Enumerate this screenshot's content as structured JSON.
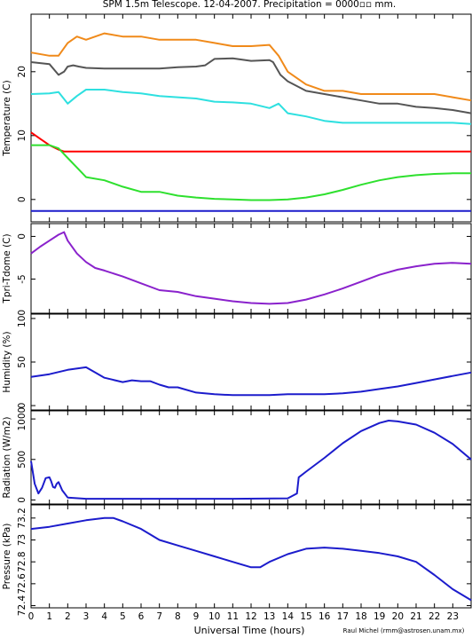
{
  "title": "SPM 1.5m Telescope. 12-04-2007. Precipitation = 0000▫▫ mm.",
  "credit": "Raul Michel (rmm@astrosen.unam.mx)",
  "xlabel": "Universal Time (hours)",
  "xticks": [
    "0",
    "1",
    "2",
    "3",
    "4",
    "5",
    "6",
    "7",
    "8",
    "9",
    "10",
    "11",
    "12",
    "13",
    "14",
    "15",
    "16",
    "17",
    "18",
    "19",
    "20",
    "21",
    "22",
    "23"
  ],
  "xlim": [
    0,
    24
  ],
  "chart_data": [
    {
      "type": "line",
      "ylabel": "Temperature (C)",
      "xlim": [
        0,
        24
      ],
      "ylim": [
        -3.5,
        29
      ],
      "yticks": [
        0,
        10,
        20
      ],
      "series": [
        {
          "color": "#f08a1a",
          "x": [
            0,
            1,
            1.5,
            2,
            2.5,
            3,
            4,
            5,
            6,
            7,
            8,
            9,
            10,
            11,
            12,
            13,
            13.5,
            14,
            15,
            16,
            17,
            18,
            19,
            20,
            21,
            22,
            23,
            24
          ],
          "y": [
            23,
            22.5,
            22.5,
            24.5,
            25.5,
            25,
            26,
            25.5,
            25.5,
            25,
            25,
            25,
            24.5,
            24,
            24,
            24.2,
            22.5,
            20,
            18,
            17,
            17,
            16.5,
            16.5,
            16.5,
            16.5,
            16.5,
            16,
            15.5
          ]
        },
        {
          "color": "#555555",
          "x": [
            0,
            1,
            1.5,
            1.8,
            2,
            2.3,
            2.6,
            3,
            4,
            5,
            6,
            7,
            8,
            9,
            9.5,
            10,
            11,
            12,
            13,
            13.2,
            13.6,
            14,
            15,
            16,
            17,
            18,
            19,
            20,
            21,
            22,
            23,
            24
          ],
          "y": [
            21.5,
            21.2,
            19.5,
            20,
            20.8,
            21,
            20.8,
            20.6,
            20.5,
            20.5,
            20.5,
            20.5,
            20.7,
            20.8,
            21,
            22,
            22.1,
            21.7,
            21.8,
            21.5,
            19.5,
            18.5,
            17,
            16.5,
            16,
            15.5,
            15,
            15,
            14.5,
            14.3,
            14,
            13.5
          ]
        },
        {
          "color": "#2ee0e0",
          "x": [
            0,
            1,
            1.5,
            2,
            2.5,
            3,
            4,
            5,
            6,
            7,
            8,
            9,
            10,
            11,
            12,
            13,
            13.5,
            14,
            15,
            16,
            17,
            18,
            19,
            20,
            21,
            22,
            23,
            24
          ],
          "y": [
            16.5,
            16.6,
            16.8,
            15,
            16.2,
            17.2,
            17.2,
            16.8,
            16.6,
            16.2,
            16,
            15.8,
            15.3,
            15.2,
            15,
            14.3,
            15,
            13.5,
            13,
            12.3,
            12,
            12,
            12,
            12,
            12,
            12,
            12,
            11.8
          ]
        },
        {
          "color": "#ff0000",
          "x": [
            0,
            0.5,
            1,
            1.5,
            1.8,
            2,
            3,
            6,
            9,
            12,
            15,
            18,
            21,
            24
          ],
          "y": [
            10.5,
            9.5,
            8.5,
            7.8,
            7.5,
            7.5,
            7.5,
            7.5,
            7.5,
            7.5,
            7.5,
            7.5,
            7.5,
            7.5
          ]
        },
        {
          "color": "#2ee02e",
          "x": [
            0,
            1,
            1.5,
            2,
            2.5,
            3,
            4,
            5,
            6,
            7,
            8,
            9,
            10,
            11,
            12,
            13,
            14,
            15,
            16,
            17,
            18,
            19,
            20,
            21,
            22,
            23,
            24
          ],
          "y": [
            8.5,
            8.5,
            8,
            6.5,
            5,
            3.5,
            3,
            2,
            1.2,
            1.2,
            0.6,
            0.3,
            0.1,
            0,
            -0.1,
            -0.1,
            0,
            0.3,
            0.8,
            1.5,
            2.3,
            3,
            3.5,
            3.8,
            4,
            4.1,
            4.1
          ]
        },
        {
          "color": "#1c1ccc",
          "x": [
            0,
            24
          ],
          "y": [
            -1.8,
            -1.8
          ]
        }
      ]
    },
    {
      "type": "line",
      "ylabel": "Tpri-Tdome (C)",
      "xlim": [
        0,
        24
      ],
      "ylim": [
        -9,
        1.5
      ],
      "yticks": [
        0,
        -5
      ],
      "series": [
        {
          "color": "#8a22cc",
          "x": [
            0,
            0.5,
            1,
            1.5,
            1.8,
            2,
            2.5,
            3,
            3.5,
            4,
            5,
            6,
            7,
            8,
            9,
            10,
            11,
            12,
            13,
            14,
            15,
            16,
            17,
            18,
            19,
            20,
            21,
            22,
            23,
            24
          ],
          "y": [
            -2,
            -1.2,
            -0.5,
            0.2,
            0.5,
            -0.5,
            -2,
            -3,
            -3.7,
            -4,
            -4.7,
            -5.5,
            -6.3,
            -6.5,
            -7,
            -7.3,
            -7.6,
            -7.8,
            -7.9,
            -7.8,
            -7.4,
            -6.8,
            -6.1,
            -5.3,
            -4.5,
            -3.9,
            -3.5,
            -3.2,
            -3.1,
            -3.2
          ]
        }
      ]
    },
    {
      "type": "line",
      "ylabel": "Humidity (%)",
      "xlim": [
        0,
        24
      ],
      "ylim": [
        -5,
        105
      ],
      "yticks": [
        0,
        50,
        100
      ],
      "series": [
        {
          "color": "#1c1ccc",
          "x": [
            0,
            1,
            2,
            3,
            3.5,
            4,
            5,
            5.5,
            6,
            6.5,
            7,
            7.5,
            8,
            9,
            10,
            11,
            12,
            13,
            14,
            15,
            16,
            17,
            18,
            19,
            20,
            21,
            22,
            23,
            24
          ],
          "y": [
            33,
            36,
            41,
            44,
            38,
            32,
            27,
            29,
            28,
            28,
            24,
            21,
            21,
            15,
            13,
            12,
            12,
            12,
            13,
            13,
            13,
            14,
            16,
            19,
            22,
            26,
            30,
            34,
            38
          ]
        }
      ]
    },
    {
      "type": "line",
      "ylabel": "Radiation (W/m2)",
      "xlim": [
        0,
        24
      ],
      "ylim": [
        -50,
        1100
      ],
      "yticks": [
        0,
        500,
        1000
      ],
      "series": [
        {
          "color": "#1c1ccc",
          "x": [
            0,
            0.2,
            0.4,
            0.6,
            0.8,
            1,
            1.1,
            1.2,
            1.3,
            1.4,
            1.5,
            1.6,
            1.7,
            1.8,
            2,
            3,
            5,
            8,
            11,
            14,
            14.5,
            14.6,
            15,
            16,
            17,
            18,
            19,
            19.5,
            20,
            21,
            22,
            23,
            24
          ],
          "y": [
            480,
            200,
            80,
            150,
            270,
            280,
            230,
            160,
            150,
            200,
            220,
            170,
            120,
            90,
            30,
            15,
            15,
            15,
            15,
            20,
            80,
            280,
            350,
            520,
            700,
            850,
            950,
            980,
            970,
            930,
            830,
            690,
            500
          ]
        }
      ]
    },
    {
      "type": "line",
      "ylabel": "Pressure (kPa)",
      "xlim": [
        0,
        24
      ],
      "ylim": [
        72.38,
        73.32
      ],
      "yticks": [
        72.4,
        72.6,
        72.8,
        73,
        73.2
      ],
      "yticklabels": [
        "72.4",
        "72.6",
        "72.8",
        "73",
        "73.2"
      ],
      "series": [
        {
          "color": "#1c1ccc",
          "x": [
            0,
            1,
            2,
            3,
            4,
            4.5,
            5,
            6,
            7,
            8,
            9,
            10,
            11,
            12,
            12.5,
            13,
            14,
            15,
            16,
            17,
            18,
            19,
            20,
            21,
            22,
            23,
            24
          ],
          "y": [
            73.1,
            73.12,
            73.15,
            73.18,
            73.2,
            73.2,
            73.17,
            73.1,
            73.0,
            72.95,
            72.9,
            72.85,
            72.8,
            72.75,
            72.75,
            72.8,
            72.87,
            72.92,
            72.93,
            72.92,
            72.9,
            72.88,
            72.85,
            72.8,
            72.68,
            72.55,
            72.45
          ]
        }
      ]
    }
  ]
}
